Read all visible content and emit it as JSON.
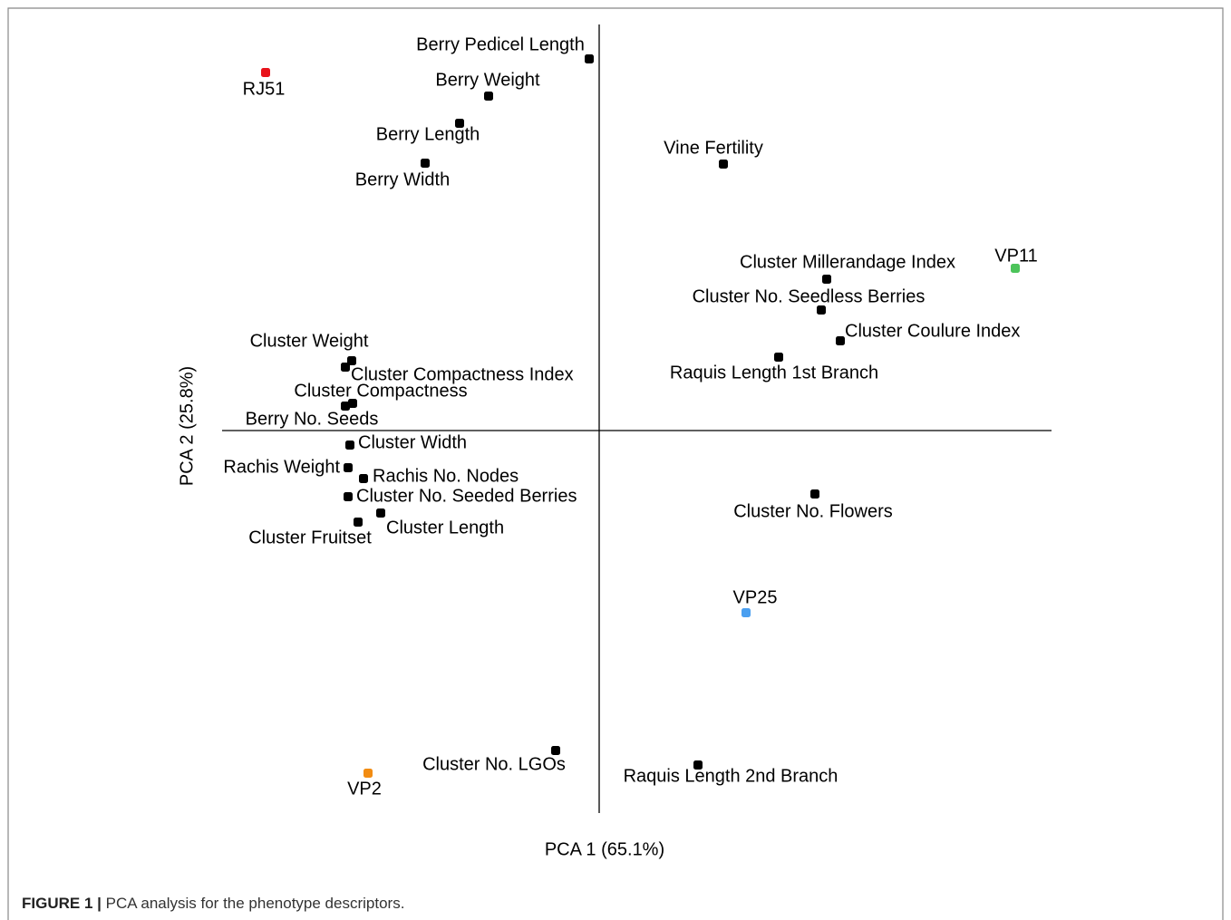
{
  "chart_data": {
    "type": "scatter",
    "x_label": "PCA 1 (65.1%)",
    "y_label": "PCA 2 (25.8%)",
    "xlim": [
      -4.16,
      4.99
    ],
    "ylim": [
      -4.22,
      4.48
    ],
    "points": [
      {
        "label": "Berry Pedicel Length",
        "x": -0.11,
        "y": 4.1,
        "color": "#000000"
      },
      {
        "label": "Berry Weight",
        "x": -1.22,
        "y": 3.69,
        "color": "#000000"
      },
      {
        "label": "Berry Length",
        "x": -1.54,
        "y": 3.39,
        "color": "#000000"
      },
      {
        "label": "Berry Width",
        "x": -1.92,
        "y": 2.95,
        "color": "#000000"
      },
      {
        "label": "Vine Fertility",
        "x": 1.37,
        "y": 2.94,
        "color": "#000000"
      },
      {
        "label": "Cluster Millerandage Index",
        "x": 2.51,
        "y": 1.67,
        "color": "#000000"
      },
      {
        "label": "Cluster No. Seedless Berries",
        "x": 2.45,
        "y": 1.33,
        "color": "#000000"
      },
      {
        "label": "Cluster Coulure Index",
        "x": 2.66,
        "y": 0.99,
        "color": "#000000"
      },
      {
        "label": "Raquis Length 1st Branch",
        "x": 1.98,
        "y": 0.81,
        "color": "#000000"
      },
      {
        "label": "Cluster Weight",
        "x": -2.73,
        "y": 0.77,
        "color": "#000000"
      },
      {
        "label": "Cluster Compactness Index",
        "x": -2.8,
        "y": 0.7,
        "color": "#000000"
      },
      {
        "label": "Cluster Compactness",
        "x": -2.72,
        "y": 0.3,
        "color": "#000000"
      },
      {
        "label": "Berry No. Seeds",
        "x": -2.8,
        "y": 0.27,
        "color": "#000000"
      },
      {
        "label": "Cluster Width",
        "x": -2.75,
        "y": -0.16,
        "color": "#000000"
      },
      {
        "label": "Rachis Weight",
        "x": -2.77,
        "y": -0.41,
        "color": "#000000"
      },
      {
        "label": "Rachis No. Nodes",
        "x": -2.6,
        "y": -0.53,
        "color": "#000000"
      },
      {
        "label": "Cluster No. Seeded Berries",
        "x": -2.77,
        "y": -0.73,
        "color": "#000000"
      },
      {
        "label": "Cluster Length",
        "x": -2.41,
        "y": -0.91,
        "color": "#000000"
      },
      {
        "label": "Cluster Fruitset",
        "x": -2.66,
        "y": -1.01,
        "color": "#000000"
      },
      {
        "label": "Cluster No. Flowers",
        "x": 2.38,
        "y": -0.7,
        "color": "#000000"
      },
      {
        "label": "Cluster No. LGOs",
        "x": -0.48,
        "y": -3.53,
        "color": "#000000"
      },
      {
        "label": "Raquis Length 2nd Branch",
        "x": 1.09,
        "y": -3.69,
        "color": "#000000"
      },
      {
        "label": "RJ51",
        "x": -3.68,
        "y": 3.95,
        "color": "#e8131b"
      },
      {
        "label": "VP11",
        "x": 4.59,
        "y": 1.79,
        "color": "#4cc45a"
      },
      {
        "label": "VP25",
        "x": 1.62,
        "y": -2.01,
        "color": "#4a9ff0"
      },
      {
        "label": "VP2",
        "x": -2.55,
        "y": -3.78,
        "color": "#f28c12"
      }
    ]
  },
  "figure_caption": {
    "label": "FIGURE 1 |",
    "text": "PCA analysis for the phenotype descriptors."
  }
}
